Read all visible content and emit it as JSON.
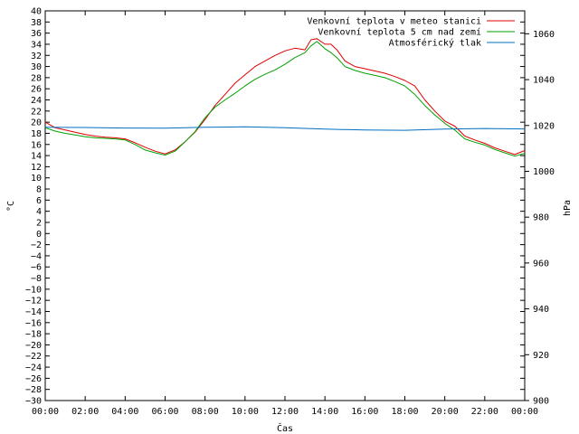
{
  "chart_data": {
    "type": "line",
    "xlabel": "Čas",
    "ylabel": "°C",
    "y2label": "hPa",
    "ylim": [
      -30,
      40
    ],
    "y2lim": [
      900,
      1070
    ],
    "xlim": [
      0,
      24
    ],
    "x_ticks": [
      "00:00",
      "02:00",
      "04:00",
      "06:00",
      "08:00",
      "10:00",
      "12:00",
      "14:00",
      "16:00",
      "18:00",
      "20:00",
      "22:00",
      "00:00"
    ],
    "y_ticks": [
      -30,
      -28,
      -26,
      -24,
      -22,
      -20,
      -18,
      -16,
      -14,
      -12,
      -10,
      -8,
      -6,
      -4,
      -2,
      0,
      2,
      4,
      6,
      8,
      10,
      12,
      14,
      16,
      18,
      20,
      22,
      24,
      26,
      28,
      30,
      32,
      34,
      36,
      38,
      40
    ],
    "y2_ticks": [
      900,
      920,
      940,
      960,
      980,
      1000,
      1020,
      1040,
      1060
    ],
    "legend_position": "top-right",
    "grid": false,
    "series": [
      {
        "name": "Venkovní teplota v meteo stanici",
        "color": "#e00000",
        "axis": "left",
        "x": [
          0,
          0.5,
          1,
          1.5,
          2,
          2.5,
          3,
          3.5,
          4,
          4.5,
          5,
          5.5,
          6,
          6.5,
          7,
          7.5,
          8,
          8.5,
          9,
          9.5,
          10,
          10.5,
          11,
          11.5,
          12,
          12.5,
          13,
          13.3,
          13.6,
          14,
          14.3,
          14.6,
          15,
          15.5,
          16,
          16.5,
          17,
          17.5,
          18,
          18.5,
          19,
          19.5,
          20,
          20.5,
          21,
          21.5,
          22,
          22.5,
          23,
          23.5,
          24
        ],
        "values": [
          20,
          19,
          18.6,
          18.2,
          17.8,
          17.5,
          17.3,
          17.2,
          17,
          16.3,
          15.5,
          14.8,
          14.3,
          15,
          16.5,
          18.2,
          20.5,
          23,
          25,
          27,
          28.5,
          30,
          31,
          32,
          32.8,
          33.3,
          33,
          34.8,
          35,
          34,
          34,
          33,
          31,
          30,
          29.6,
          29.2,
          28.8,
          28.2,
          27.5,
          26.5,
          24,
          22,
          20.2,
          19.3,
          17.5,
          16.8,
          16.2,
          15.4,
          14.8,
          14.2,
          14.9
        ]
      },
      {
        "name": "Venkovní teplota 5 cm nad zemí",
        "color": "#00a000",
        "axis": "left",
        "x": [
          0,
          0.5,
          1,
          1.5,
          2,
          2.5,
          3,
          3.5,
          4,
          4.5,
          5,
          5.5,
          6,
          6.5,
          7,
          7.5,
          8,
          8.5,
          9,
          9.5,
          10,
          10.5,
          11,
          11.5,
          12,
          12.5,
          13,
          13.3,
          13.6,
          14,
          14.3,
          14.6,
          15,
          15.5,
          16,
          16.5,
          17,
          17.5,
          18,
          18.5,
          19,
          19.5,
          20,
          20.5,
          21,
          21.5,
          22,
          22.5,
          23,
          23.5,
          24
        ],
        "values": [
          19,
          18.4,
          18,
          17.7,
          17.4,
          17.2,
          17.1,
          17,
          16.8,
          16,
          15,
          14.5,
          14.1,
          14.8,
          16.5,
          18.3,
          20.8,
          22.7,
          24,
          25.2,
          26.5,
          27.7,
          28.6,
          29.4,
          30.4,
          31.6,
          32.5,
          33.7,
          34.5,
          33.2,
          32.5,
          31.6,
          30,
          29.3,
          28.8,
          28.4,
          28,
          27.3,
          26.5,
          25,
          23,
          21.3,
          19.8,
          18.6,
          17,
          16.4,
          15.9,
          15.1,
          14.5,
          13.9,
          14.4
        ]
      },
      {
        "name": "Atmosférický tlak",
        "color": "#0070c0",
        "axis": "right",
        "x": [
          0,
          2,
          4,
          6,
          8,
          10,
          12,
          14,
          16,
          18,
          20,
          22,
          24
        ],
        "values": [
          1019.2,
          1019.1,
          1018.9,
          1018.8,
          1019.2,
          1019.4,
          1019.0,
          1018.4,
          1018.0,
          1017.9,
          1018.4,
          1018.7,
          1018.5
        ]
      }
    ]
  }
}
